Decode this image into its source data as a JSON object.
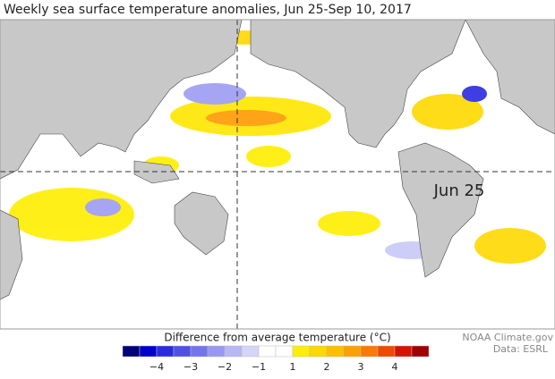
{
  "title": "Weekly sea surface temperature anomalies, Jun 25-Sep 10, 2017",
  "date_label": "Jun 25",
  "legend": {
    "title": "Difference from average temperature (°C)",
    "colors": [
      "#00007f",
      "#0000cc",
      "#2a2ae0",
      "#4f4fe8",
      "#7474ee",
      "#9898f2",
      "#b7b7f6",
      "#d5d5fa",
      "#ffffff",
      "#ffffff",
      "#ffee00",
      "#ffd800",
      "#ffbf00",
      "#ff9f00",
      "#ff7800",
      "#f24800",
      "#d41400",
      "#a00000"
    ],
    "ticks": [
      {
        "value": -4,
        "label": "−4"
      },
      {
        "value": -3,
        "label": "−3"
      },
      {
        "value": -2,
        "label": "−2"
      },
      {
        "value": -1,
        "label": "−1"
      },
      1,
      2,
      3,
      4
    ]
  },
  "credits": [
    "NOAA Climate.gov",
    "Data: ESRL"
  ]
}
